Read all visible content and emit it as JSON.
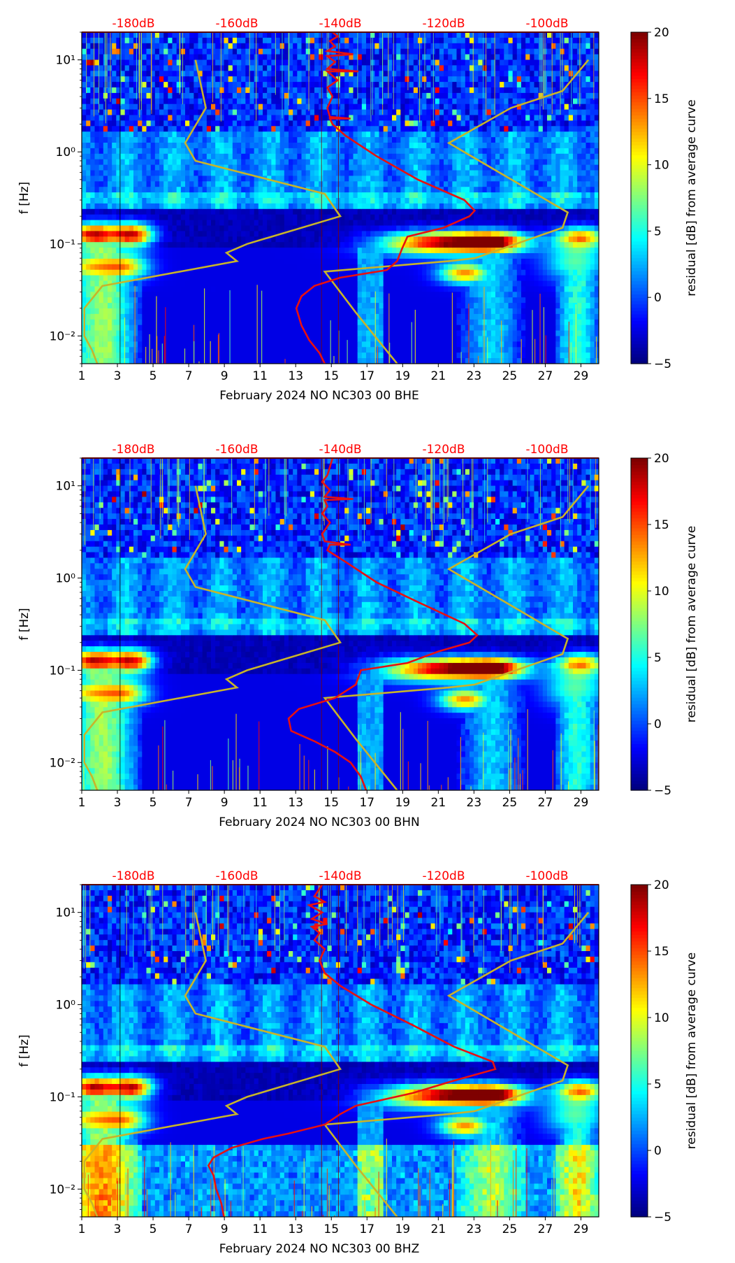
{
  "colors": {
    "db_label": "#ff0000",
    "psd_curve": "#e81010",
    "noise_model": "#c8b42a",
    "frame": "#000000"
  },
  "colormap": {
    "name": "jet",
    "stops": [
      "#00007f",
      "#0000ff",
      "#007fff",
      "#00ffff",
      "#7fff7f",
      "#ffff00",
      "#ff7f00",
      "#ff0000",
      "#7f0000"
    ]
  },
  "chart_data": [
    {
      "type": "heatmap",
      "title": "",
      "xlabel": "February 2024 NO NC303 00 BHE",
      "ylabel": "f [Hz]",
      "x_ticks": [
        "1",
        "3",
        "5",
        "7",
        "9",
        "11",
        "13",
        "15",
        "17",
        "19",
        "21",
        "23",
        "25",
        "27",
        "29"
      ],
      "x_tick_values": [
        1,
        3,
        5,
        7,
        9,
        11,
        13,
        15,
        17,
        19,
        21,
        23,
        25,
        27,
        29
      ],
      "xlim": [
        1,
        30
      ],
      "y_scale": "log",
      "y_ticks": [
        "10⁻²",
        "10⁻¹",
        "10⁰",
        "10¹"
      ],
      "y_tick_values": [
        0.01,
        0.1,
        1,
        10
      ],
      "ylim": [
        0.005,
        20
      ],
      "top_ticks": [
        "-180dB",
        "-160dB",
        "-140dB",
        "-120dB",
        "-100dB"
      ],
      "top_tick_values": [
        -180,
        -160,
        -140,
        -120,
        -100
      ],
      "top_range": [
        -190,
        -90
      ],
      "colorbar_label": "residual [dB] from average curve",
      "colorbar_ticks": [
        "−5",
        "0",
        "5",
        "10",
        "15",
        "20"
      ],
      "colorbar_tick_values": [
        -5,
        0,
        5,
        10,
        15,
        20
      ],
      "colorbar_range": [
        -5,
        20
      ],
      "vertical_lines_day": [
        3.15,
        14.45,
        15.4
      ],
      "psd_curve": {
        "name": "average PSD",
        "points_db_hz": [
          [
            -143,
            0.005
          ],
          [
            -144,
            0.0065
          ],
          [
            -146,
            0.009
          ],
          [
            -147.5,
            0.013
          ],
          [
            -148.5,
            0.02
          ],
          [
            -147.5,
            0.027
          ],
          [
            -145,
            0.035
          ],
          [
            -140,
            0.043
          ],
          [
            -131,
            0.052
          ],
          [
            -129,
            0.065
          ],
          [
            -128,
            0.09
          ],
          [
            -127,
            0.12
          ],
          [
            -120,
            0.15
          ],
          [
            -115,
            0.2
          ],
          [
            -114,
            0.23
          ],
          [
            -116,
            0.3
          ],
          [
            -125,
            0.5
          ],
          [
            -133,
            0.9
          ],
          [
            -139,
            1.5
          ],
          [
            -141.5,
            2.0
          ],
          [
            -142,
            2.3
          ],
          [
            -138,
            2.3
          ],
          [
            -142,
            2.4
          ],
          [
            -142.5,
            3
          ],
          [
            -141.5,
            4
          ],
          [
            -142.5,
            5
          ],
          [
            -140.5,
            6
          ],
          [
            -142.5,
            7.5
          ],
          [
            -136.5,
            7.5
          ],
          [
            -142.5,
            8
          ],
          [
            -141,
            9.5
          ],
          [
            -142.5,
            11
          ],
          [
            -137.5,
            11.5
          ],
          [
            -142.5,
            12.5
          ],
          [
            -141,
            14
          ],
          [
            -142,
            16
          ],
          [
            -140.5,
            18
          ],
          [
            -141.5,
            20
          ]
        ]
      },
      "noise_models": [
        {
          "name": "low noise model",
          "points_db_hz": [
            [
              -187,
              0.005
            ],
            [
              -188,
              0.007
            ],
            [
              -189.5,
              0.01
            ],
            [
              -189.5,
              0.02
            ],
            [
              -186,
              0.035
            ],
            [
              -160,
              0.065
            ],
            [
              -162,
              0.08
            ],
            [
              -158,
              0.1
            ],
            [
              -140,
              0.2
            ],
            [
              -143,
              0.35
            ],
            [
              -168,
              0.8
            ],
            [
              -170,
              1.25
            ],
            [
              -166,
              3
            ],
            [
              -168,
              10
            ]
          ]
        },
        {
          "name": "high noise model",
          "points_db_hz": [
            [
              -129,
              0.005
            ],
            [
              -137,
              0.018
            ],
            [
              -143,
              0.05
            ],
            [
              -119,
              0.065
            ],
            [
              -114,
              0.07
            ],
            [
              -97,
              0.15
            ],
            [
              -96,
              0.22
            ],
            [
              -119,
              1.25
            ],
            [
              -107,
              3
            ],
            [
              -97,
              4.6
            ],
            [
              -92,
              10
            ]
          ]
        }
      ]
    },
    {
      "type": "heatmap",
      "title": "",
      "xlabel": "February 2024 NO NC303 00 BHN",
      "ylabel": "f [Hz]",
      "x_ticks": [
        "1",
        "3",
        "5",
        "7",
        "9",
        "11",
        "13",
        "15",
        "17",
        "19",
        "21",
        "23",
        "25",
        "27",
        "29"
      ],
      "x_tick_values": [
        1,
        3,
        5,
        7,
        9,
        11,
        13,
        15,
        17,
        19,
        21,
        23,
        25,
        27,
        29
      ],
      "xlim": [
        1,
        30
      ],
      "y_scale": "log",
      "y_ticks": [
        "10⁻²",
        "10⁻¹",
        "10⁰",
        "10¹"
      ],
      "y_tick_values": [
        0.01,
        0.1,
        1,
        10
      ],
      "ylim": [
        0.005,
        20
      ],
      "top_ticks": [
        "-180dB",
        "-160dB",
        "-140dB",
        "-120dB",
        "-100dB"
      ],
      "top_tick_values": [
        -180,
        -160,
        -140,
        -120,
        -100
      ],
      "top_range": [
        -190,
        -90
      ],
      "colorbar_label": "residual [dB] from average curve",
      "colorbar_ticks": [
        "−5",
        "0",
        "5",
        "10",
        "15",
        "20"
      ],
      "colorbar_tick_values": [
        -5,
        0,
        5,
        10,
        15,
        20
      ],
      "colorbar_range": [
        -5,
        20
      ],
      "vertical_lines_day": [
        3.15,
        14.45,
        15.4
      ],
      "psd_curve": {
        "name": "average PSD",
        "points_db_hz": [
          [
            -135,
            0.005
          ],
          [
            -136,
            0.007
          ],
          [
            -138,
            0.01
          ],
          [
            -141,
            0.013
          ],
          [
            -145,
            0.017
          ],
          [
            -149.5,
            0.022
          ],
          [
            -150,
            0.03
          ],
          [
            -148,
            0.038
          ],
          [
            -141,
            0.05
          ],
          [
            -137,
            0.07
          ],
          [
            -136,
            0.1
          ],
          [
            -127,
            0.12
          ],
          [
            -121,
            0.16
          ],
          [
            -115,
            0.2
          ],
          [
            -113.5,
            0.24
          ],
          [
            -116,
            0.32
          ],
          [
            -125,
            0.55
          ],
          [
            -133,
            0.9
          ],
          [
            -139,
            1.5
          ],
          [
            -142.5,
            2.0
          ],
          [
            -142,
            2.3
          ],
          [
            -138,
            2.3
          ],
          [
            -143,
            2.5
          ],
          [
            -143.5,
            3
          ],
          [
            -142,
            4
          ],
          [
            -143.5,
            5
          ],
          [
            -142.5,
            6
          ],
          [
            -143,
            7
          ],
          [
            -137.5,
            7.2
          ],
          [
            -143,
            7.6
          ],
          [
            -142,
            9
          ],
          [
            -143.5,
            11
          ],
          [
            -142.5,
            13
          ],
          [
            -142,
            16
          ],
          [
            -141.5,
            20
          ]
        ]
      },
      "noise_models": [
        {
          "name": "low noise model",
          "points_db_hz": [
            [
              -187,
              0.005
            ],
            [
              -188,
              0.007
            ],
            [
              -189.5,
              0.01
            ],
            [
              -189.5,
              0.02
            ],
            [
              -186,
              0.035
            ],
            [
              -160,
              0.065
            ],
            [
              -162,
              0.08
            ],
            [
              -158,
              0.1
            ],
            [
              -140,
              0.2
            ],
            [
              -143,
              0.35
            ],
            [
              -168,
              0.8
            ],
            [
              -170,
              1.25
            ],
            [
              -166,
              3
            ],
            [
              -168,
              10
            ]
          ]
        },
        {
          "name": "high noise model",
          "points_db_hz": [
            [
              -129,
              0.005
            ],
            [
              -137,
              0.018
            ],
            [
              -143,
              0.05
            ],
            [
              -119,
              0.065
            ],
            [
              -114,
              0.07
            ],
            [
              -97,
              0.15
            ],
            [
              -96,
              0.22
            ],
            [
              -119,
              1.25
            ],
            [
              -107,
              3
            ],
            [
              -97,
              4.6
            ],
            [
              -92,
              10
            ]
          ]
        }
      ]
    },
    {
      "type": "heatmap",
      "title": "",
      "xlabel": "February 2024 NO NC303 00 BHZ",
      "ylabel": "f [Hz]",
      "x_ticks": [
        "1",
        "3",
        "5",
        "7",
        "9",
        "11",
        "13",
        "15",
        "17",
        "19",
        "21",
        "23",
        "25",
        "27",
        "29"
      ],
      "x_tick_values": [
        1,
        3,
        5,
        7,
        9,
        11,
        13,
        15,
        17,
        19,
        21,
        23,
        25,
        27,
        29
      ],
      "xlim": [
        1,
        30
      ],
      "y_scale": "log",
      "y_ticks": [
        "10⁻²",
        "10⁻¹",
        "10⁰",
        "10¹"
      ],
      "y_tick_values": [
        0.01,
        0.1,
        1,
        10
      ],
      "ylim": [
        0.005,
        20
      ],
      "top_ticks": [
        "-180dB",
        "-160dB",
        "-140dB",
        "-120dB",
        "-100dB"
      ],
      "top_tick_values": [
        -180,
        -160,
        -140,
        -120,
        -100
      ],
      "top_range": [
        -190,
        -90
      ],
      "colorbar_label": "residual [dB] from average curve",
      "colorbar_ticks": [
        "−5",
        "0",
        "5",
        "10",
        "15",
        "20"
      ],
      "colorbar_tick_values": [
        -5,
        0,
        5,
        10,
        15,
        20
      ],
      "colorbar_range": [
        -5,
        20
      ],
      "vertical_lines_day": [
        3.15,
        14.45,
        15.4
      ],
      "psd_curve": {
        "name": "average PSD",
        "points_db_hz": [
          [
            -162.5,
            0.005
          ],
          [
            -163,
            0.007
          ],
          [
            -164,
            0.01
          ],
          [
            -164.5,
            0.014
          ],
          [
            -165.5,
            0.018
          ],
          [
            -164.5,
            0.022
          ],
          [
            -161,
            0.028
          ],
          [
            -155,
            0.035
          ],
          [
            -150,
            0.04
          ],
          [
            -143,
            0.05
          ],
          [
            -140,
            0.065
          ],
          [
            -137,
            0.08
          ],
          [
            -126,
            0.11
          ],
          [
            -118,
            0.15
          ],
          [
            -110,
            0.2
          ],
          [
            -110.5,
            0.24
          ],
          [
            -118,
            0.35
          ],
          [
            -126,
            0.6
          ],
          [
            -134,
            1.0
          ],
          [
            -140,
            1.6
          ],
          [
            -143,
            2.2
          ],
          [
            -144,
            3
          ],
          [
            -143,
            4
          ],
          [
            -145,
            5
          ],
          [
            -144,
            6
          ],
          [
            -145.5,
            7
          ],
          [
            -142.5,
            7.5
          ],
          [
            -145.5,
            8.5
          ],
          [
            -143.5,
            10
          ],
          [
            -146,
            12
          ],
          [
            -143,
            13
          ],
          [
            -145,
            15
          ],
          [
            -143.5,
            20
          ]
        ]
      },
      "noise_models": [
        {
          "name": "low noise model",
          "points_db_hz": [
            [
              -187,
              0.005
            ],
            [
              -188,
              0.007
            ],
            [
              -189.5,
              0.01
            ],
            [
              -189.5,
              0.02
            ],
            [
              -186,
              0.035
            ],
            [
              -160,
              0.065
            ],
            [
              -162,
              0.08
            ],
            [
              -158,
              0.1
            ],
            [
              -140,
              0.2
            ],
            [
              -143,
              0.35
            ],
            [
              -168,
              0.8
            ],
            [
              -170,
              1.25
            ],
            [
              -166,
              3
            ],
            [
              -168,
              10
            ]
          ]
        },
        {
          "name": "high noise model",
          "points_db_hz": [
            [
              -129,
              0.005
            ],
            [
              -137,
              0.018
            ],
            [
              -143,
              0.05
            ],
            [
              -119,
              0.065
            ],
            [
              -114,
              0.07
            ],
            [
              -97,
              0.15
            ],
            [
              -96,
              0.22
            ],
            [
              -119,
              1.25
            ],
            [
              -107,
              3
            ],
            [
              -97,
              4.6
            ],
            [
              -92,
              10
            ]
          ]
        }
      ]
    }
  ]
}
